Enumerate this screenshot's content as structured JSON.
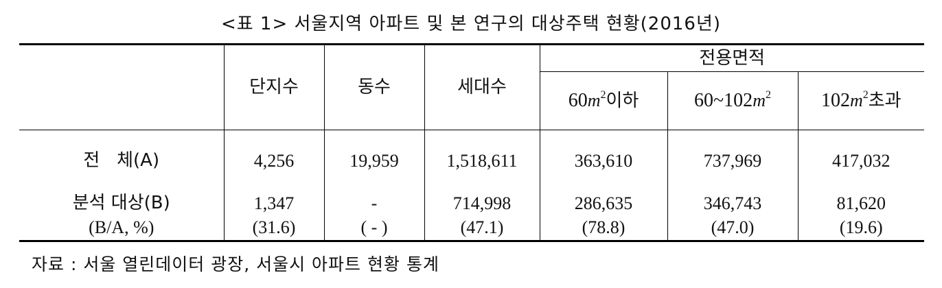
{
  "title": "<표 1> 서울지역 아파트 및 본 연구의 대상주택 현황(2016년)",
  "header": {
    "col_complex": "단지수",
    "col_building": "동수",
    "col_household": "세대수",
    "col_area_group": "전용면적",
    "area_cols": [
      {
        "num": "60",
        "unit": "m",
        "sup": "2",
        "suffix": "이하"
      },
      {
        "num": "60~102",
        "unit": "m",
        "sup": "2",
        "suffix": ""
      },
      {
        "num": "102",
        "unit": "m",
        "sup": "2",
        "suffix": "초과"
      }
    ]
  },
  "rows": [
    {
      "label": "전   체(A)",
      "cells": [
        "4,256",
        "19,959",
        "1,518,611",
        "363,610",
        "737,969",
        "417,032"
      ]
    },
    {
      "label": "분석 대상(B)",
      "cells": [
        "1,347",
        "-",
        "714,998",
        "286,635",
        "346,743",
        "81,620"
      ]
    },
    {
      "label": "(B/A, %)",
      "cells": [
        "(31.6)",
        "( - )",
        "(47.1)",
        "(78.8)",
        "(47.0)",
        "(19.6)"
      ]
    }
  ],
  "source": "자료 : 서울 열린데이터 광장, 서울시 아파트 현황 통계"
}
